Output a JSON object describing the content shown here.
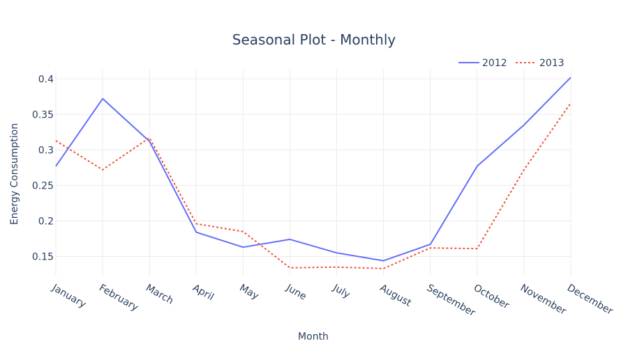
{
  "chart_data": {
    "type": "line",
    "title": "Seasonal Plot - Monthly",
    "xlabel": "Month",
    "ylabel": "Energy Consumption",
    "categories": [
      "January",
      "February",
      "March",
      "April",
      "May",
      "June",
      "July",
      "August",
      "September",
      "October",
      "November",
      "December"
    ],
    "ylim": [
      0.123,
      0.413
    ],
    "yticks": [
      0.15,
      0.2,
      0.25,
      0.3,
      0.35,
      0.4
    ],
    "ytick_labels": [
      "0.15",
      "0.2",
      "0.25",
      "0.3",
      "0.35",
      "0.4"
    ],
    "grid": true,
    "legend_position": "top-right",
    "series": [
      {
        "name": "2012",
        "color": "#636efa",
        "dash": "solid",
        "values": [
          0.277,
          0.372,
          0.312,
          0.184,
          0.163,
          0.174,
          0.155,
          0.144,
          0.167,
          0.277,
          0.335,
          0.402
        ]
      },
      {
        "name": "2013",
        "color": "#ef553b",
        "dash": "dot",
        "values": [
          0.313,
          0.272,
          0.317,
          0.196,
          0.185,
          0.134,
          0.135,
          0.133,
          0.162,
          0.161,
          0.272,
          0.366
        ]
      }
    ]
  }
}
